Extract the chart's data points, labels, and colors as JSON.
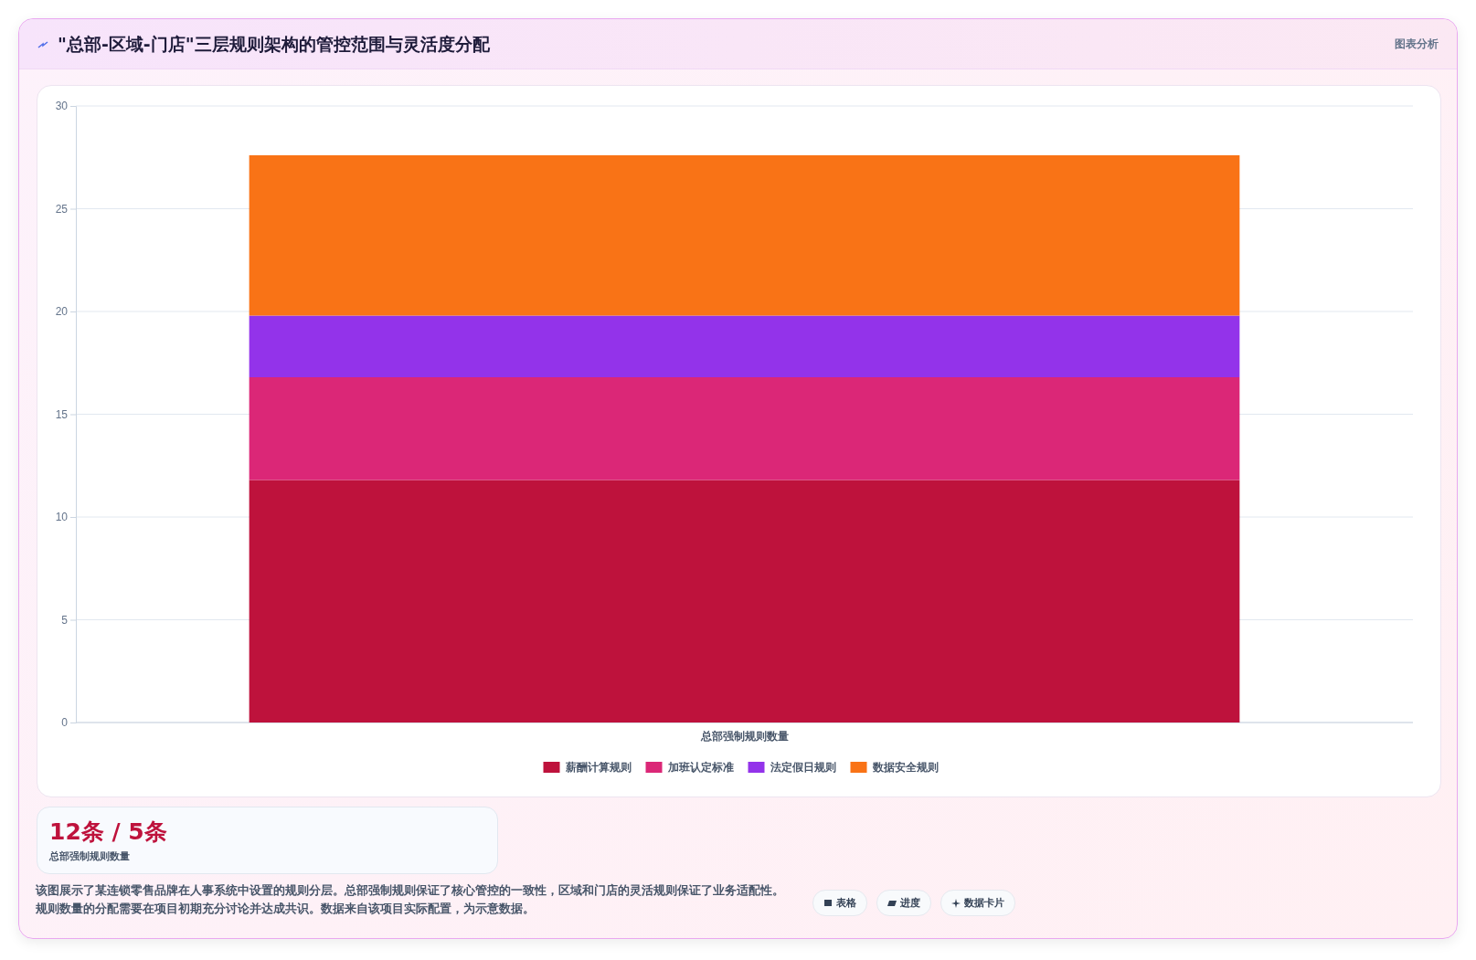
{
  "chart_data": {
    "type": "bar",
    "title": "\"总部-区域-门店\"三层规则架构的管控范围与灵活度分配",
    "stacked": true,
    "categories": [
      "总部强制规则数量"
    ],
    "series": [
      {
        "name": "薪酬计算规则",
        "color": "#be123c",
        "values": [
          11.8
        ]
      },
      {
        "name": "加班认定标准",
        "color": "#db2777",
        "values": [
          5
        ]
      },
      {
        "name": "法定假日规则",
        "color": "#9333ea",
        "values": [
          3
        ]
      },
      {
        "name": "数据安全规则",
        "color": "#f97316",
        "values": [
          7.8
        ]
      }
    ],
    "ylim": [
      0,
      30
    ],
    "yticks": [
      0,
      5,
      10,
      15,
      20,
      25,
      30
    ],
    "grid": "y",
    "legend": "bottom",
    "annotations": [
      "图表分析",
      "12条 / 5条",
      "总部强制规则数量",
      "该图展示了某连锁零售品牌在人事系统中设置的规则分层。总部强制规则保证了核心管控的一致性，区域和门店的灵活规则保证了业务适配性。规则数量的分配需要在项目初期充分讨论并达成共识。数据来自该项目实际配置，为示意数据。",
      "表格",
      "进度",
      "数据卡片"
    ]
  }
}
